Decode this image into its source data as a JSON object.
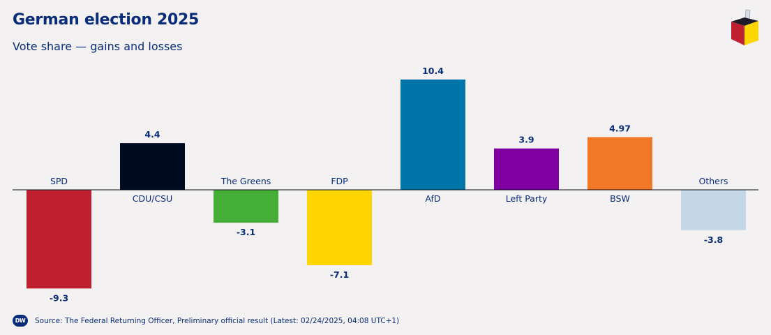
{
  "header": {
    "title": "German election 2025",
    "subtitle": "Vote share — gains and losses"
  },
  "footer": {
    "logo_text": "DW",
    "source": "Source: The Federal Returning Officer, Preliminary official result (Latest: 02/24/2025, 04:08 UTC+1)"
  },
  "chart_data": {
    "type": "bar",
    "title": "German election 2025",
    "subtitle": "Vote share — gains and losses",
    "categories": [
      "SPD",
      "CDU/CSU",
      "The Greens",
      "FDP",
      "AfD",
      "Left Party",
      "BSW",
      "Others"
    ],
    "values": [
      -9.3,
      4.4,
      -3.1,
      -7.1,
      10.4,
      3.9,
      4.97,
      -3.8
    ],
    "value_labels": [
      "-9.3",
      "4.4",
      "-3.1",
      "-7.1",
      "10.4",
      "3.9",
      "4.97",
      "-3.8"
    ],
    "colors": [
      "#be2030",
      "#000b22",
      "#44ae37",
      "#ffd500",
      "#0076a8",
      "#7f00a1",
      "#f07826",
      "#c4d7e6"
    ],
    "ylim": [
      -10.5,
      11.5
    ],
    "grid": false,
    "legend": "none"
  }
}
